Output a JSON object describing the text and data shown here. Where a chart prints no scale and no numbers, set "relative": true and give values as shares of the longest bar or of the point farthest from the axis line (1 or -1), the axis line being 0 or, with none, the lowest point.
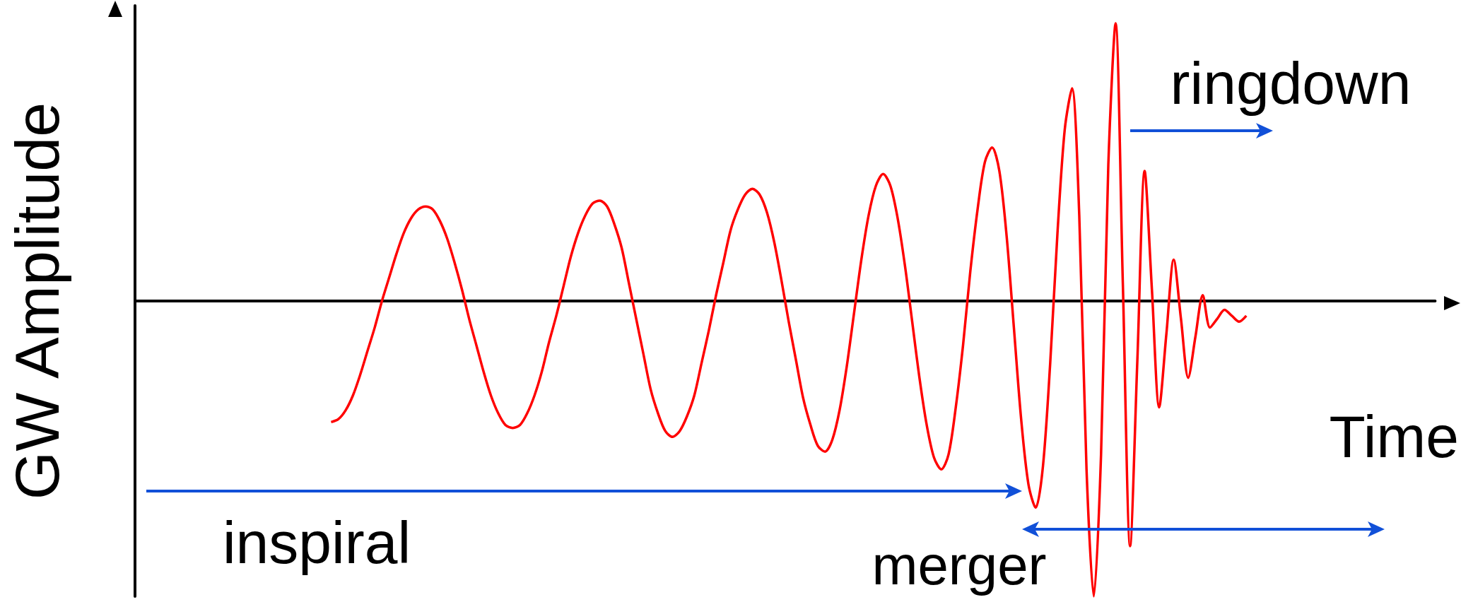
{
  "chart_data": {
    "type": "line",
    "relative": true,
    "xlabel": "Time",
    "ylabel": "GW Amplitude",
    "marker": "none",
    "annotations": [
      "inspiral",
      "merger",
      "ringdown"
    ],
    "categories": [
      null,
      null,
      null,
      null,
      null,
      null,
      null,
      null,
      null,
      null,
      null,
      null,
      null,
      null,
      null,
      null,
      null,
      null,
      null,
      null,
      null,
      null,
      null,
      null,
      null,
      null,
      null,
      null,
      null,
      null,
      null,
      null,
      null,
      null,
      null,
      null,
      null,
      null,
      null,
      null,
      null,
      null,
      null,
      null,
      null,
      null,
      null,
      null,
      null,
      null,
      null,
      null,
      null,
      null,
      null,
      null,
      null,
      null,
      null,
      null,
      null,
      null,
      null,
      null,
      null,
      null,
      null,
      null,
      null,
      null,
      null,
      null,
      null,
      null,
      null,
      null,
      null,
      null,
      null,
      null,
      null,
      null,
      null,
      null,
      null,
      null,
      null,
      null,
      null,
      null,
      null,
      null,
      null,
      null,
      null,
      null,
      null,
      null,
      null,
      null,
      null,
      null,
      null,
      null,
      null,
      null,
      null,
      null,
      null,
      null,
      null,
      null,
      null,
      null,
      null,
      null,
      null,
      null,
      null,
      null,
      null,
      null,
      null,
      null,
      null,
      null,
      null,
      null,
      null,
      null,
      null,
      null,
      null,
      null,
      null,
      null,
      null,
      null,
      null,
      null,
      null,
      null,
      null,
      null,
      null,
      null,
      null,
      null,
      null,
      null,
      null,
      null,
      null,
      null,
      null,
      null,
      null,
      null,
      null,
      null,
      null,
      null,
      null,
      null,
      null,
      null,
      null,
      null,
      null,
      null,
      null,
      null,
      null,
      null,
      null,
      null,
      null,
      null,
      null,
      null
    ],
    "series": [
      {
        "color": "#ff0000",
        "values": [
          null,
          null,
          null,
          null,
          null,
          null,
          null,
          null,
          null,
          null,
          null,
          null,
          null,
          null,
          null,
          null,
          null,
          null,
          null,
          null,
          null,
          null,
          null,
          null,
          null,
          null,
          null,
          -0.41,
          -0.4,
          -0.37,
          -0.32,
          -0.25,
          -0.17,
          -0.09,
          0.0,
          0.08,
          0.16,
          0.23,
          0.28,
          0.31,
          0.32,
          0.31,
          0.27,
          0.21,
          0.13,
          0.04,
          -0.06,
          -0.15,
          -0.24,
          -0.32,
          -0.38,
          -0.42,
          -0.43,
          -0.42,
          -0.38,
          -0.32,
          -0.24,
          -0.14,
          -0.05,
          0.05,
          0.15,
          0.23,
          0.29,
          0.33,
          0.34,
          0.32,
          0.26,
          0.18,
          0.06,
          -0.06,
          -0.18,
          -0.3,
          -0.38,
          -0.44,
          -0.46,
          -0.44,
          -0.39,
          -0.32,
          -0.21,
          -0.1,
          0.02,
          0.13,
          0.24,
          0.31,
          0.36,
          0.38,
          0.36,
          0.3,
          0.2,
          0.07,
          -0.07,
          -0.2,
          -0.33,
          -0.42,
          -0.49,
          -0.51,
          -0.47,
          -0.37,
          -0.22,
          -0.04,
          0.14,
          0.29,
          0.39,
          0.43,
          0.39,
          0.28,
          0.12,
          -0.07,
          -0.26,
          -0.42,
          -0.53,
          -0.57,
          -0.52,
          -0.36,
          -0.15,
          0.1,
          0.31,
          0.47,
          0.52,
          0.44,
          0.22,
          -0.09,
          -0.4,
          -0.62,
          -0.7,
          -0.56,
          -0.21,
          0.23,
          0.58,
          0.72,
          0.29,
          -0.57,
          -1,
          -0.52,
          0.46,
          0.94,
          0.06,
          -0.83,
          -0.2,
          0.44,
          0.04,
          -0.36,
          -0.11,
          0.14,
          -0.06,
          -0.26,
          -0.12,
          0.02,
          -0.09,
          -0.06,
          -0.03,
          -0.05,
          -0.07,
          -0.05,
          null,
          null,
          null,
          null,
          null,
          null,
          null,
          null,
          null,
          null,
          null,
          null,
          null,
          null,
          null,
          null,
          null,
          null,
          null,
          null,
          null,
          null,
          null,
          null,
          null,
          null
        ]
      }
    ]
  }
}
